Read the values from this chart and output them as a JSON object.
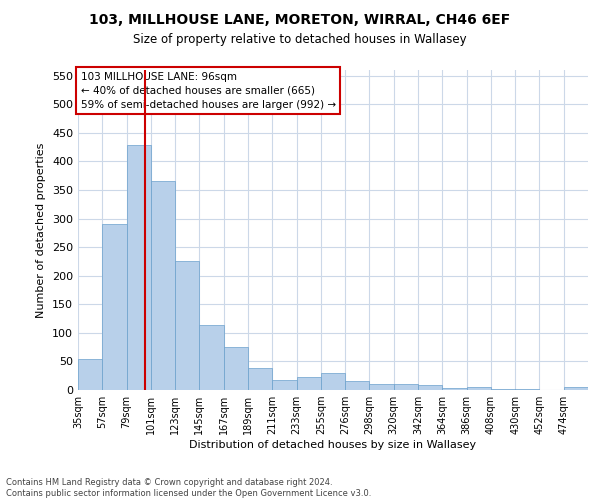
{
  "title1": "103, MILLHOUSE LANE, MORETON, WIRRAL, CH46 6EF",
  "title2": "Size of property relative to detached houses in Wallasey",
  "xlabel": "Distribution of detached houses by size in Wallasey",
  "ylabel": "Number of detached properties",
  "footnote1": "Contains HM Land Registry data © Crown copyright and database right 2024.",
  "footnote2": "Contains public sector information licensed under the Open Government Licence v3.0.",
  "annotation_line1": "103 MILLHOUSE LANE: 96sqm",
  "annotation_line2": "← 40% of detached houses are smaller (665)",
  "annotation_line3": "59% of semi-detached houses are larger (992) →",
  "vline_x": 96,
  "bar_labels": [
    "35sqm",
    "57sqm",
    "79sqm",
    "101sqm",
    "123sqm",
    "145sqm",
    "167sqm",
    "189sqm",
    "211sqm",
    "233sqm",
    "255sqm",
    "276sqm",
    "298sqm",
    "320sqm",
    "342sqm",
    "364sqm",
    "386sqm",
    "408sqm",
    "430sqm",
    "452sqm",
    "474sqm"
  ],
  "bar_values": [
    55,
    291,
    428,
    365,
    226,
    113,
    76,
    38,
    17,
    22,
    29,
    16,
    10,
    10,
    8,
    4,
    5,
    1,
    1,
    0,
    5
  ],
  "bin_width": 22,
  "bar_color": "#b8d0ea",
  "bar_edgecolor": "#6aa0cc",
  "vline_color": "#cc0000",
  "background_color": "#ffffff",
  "grid_color": "#ccd8e8",
  "ylim": [
    0,
    560
  ],
  "yticks": [
    0,
    50,
    100,
    150,
    200,
    250,
    300,
    350,
    400,
    450,
    500,
    550
  ]
}
